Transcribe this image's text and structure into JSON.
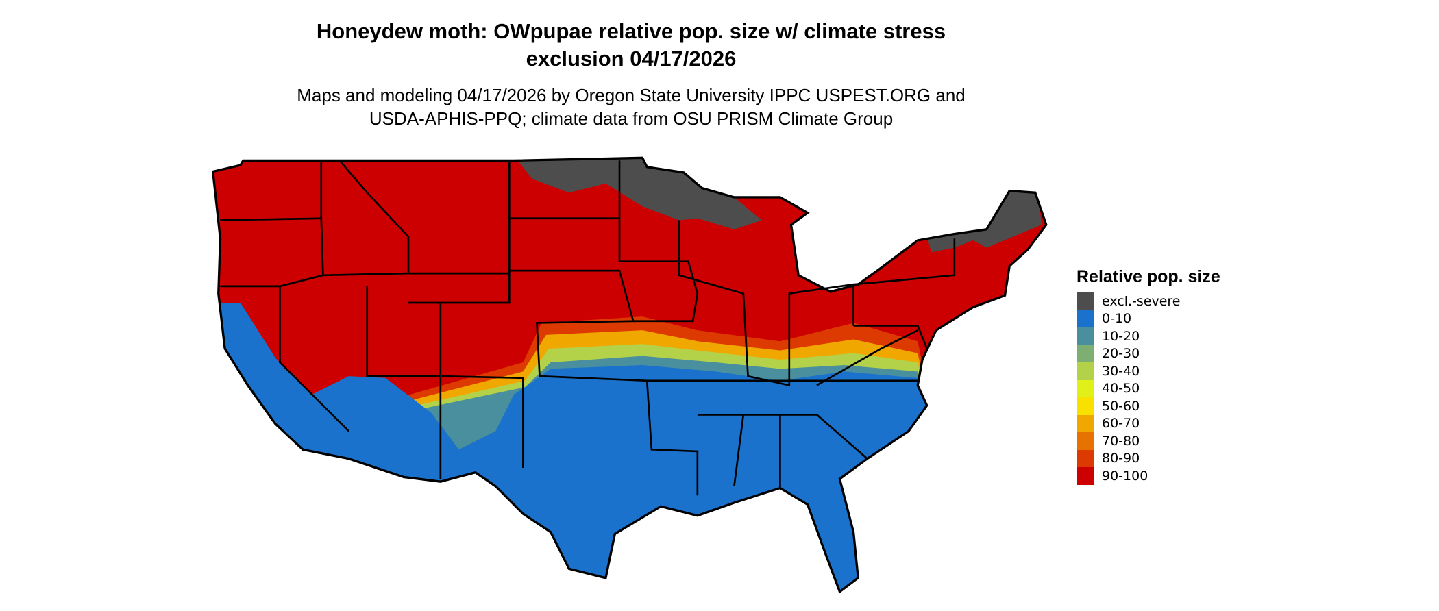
{
  "title": {
    "line1": "Honeydew moth: OWpupae relative pop. size w/ climate stress",
    "line2": "exclusion 04/17/2026"
  },
  "subtitle": {
    "line1": "Maps and modeling 04/17/2026 by Oregon State University IPPC USPEST.ORG and",
    "line2": "USDA-APHIS-PPQ; climate data from OSU PRISM Climate Group"
  },
  "legend": {
    "title": "Relative pop. size",
    "items": [
      {
        "label": "excl.-severe",
        "color": "#4d4d4d"
      },
      {
        "label": "0-10",
        "color": "#1a72cc"
      },
      {
        "label": "10-20",
        "color": "#4a8f9e"
      },
      {
        "label": "20-30",
        "color": "#7daf72"
      },
      {
        "label": "30-40",
        "color": "#b3d24a"
      },
      {
        "label": "40-50",
        "color": "#e2f01a"
      },
      {
        "label": "50-60",
        "color": "#f8e000"
      },
      {
        "label": "60-70",
        "color": "#f0a800"
      },
      {
        "label": "70-80",
        "color": "#e67200"
      },
      {
        "label": "80-90",
        "color": "#dc3a00"
      },
      {
        "label": "90-100",
        "color": "#cc0000"
      }
    ]
  }
}
